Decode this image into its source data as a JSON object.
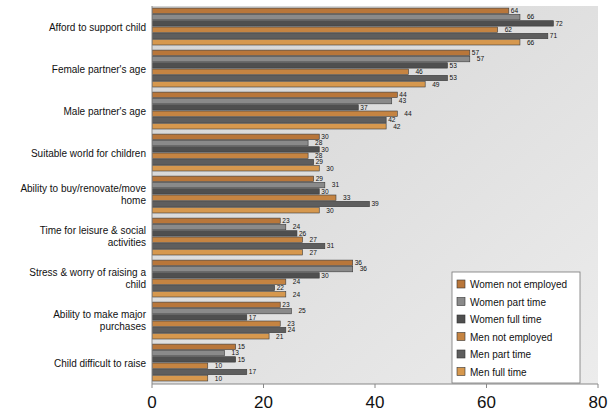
{
  "chart_data": {
    "type": "bar",
    "orientation": "horizontal",
    "data_labels": true,
    "grid": false,
    "legend": "lower right",
    "categories": [
      "Afford to support child",
      "Female partner's age",
      "Male partner's age",
      "Suitable world for children",
      "Ability to buy/renovate/move home",
      "Time for leisure & social activities",
      "Stress & worry of raising a child",
      "Ability to make major purchases",
      "Child difficult to raise"
    ],
    "series": [
      {
        "name": "Women not employed",
        "color": "#b8763a",
        "values": [
          64,
          57,
          44,
          30,
          29,
          23,
          36,
          23,
          15
        ]
      },
      {
        "name": "Women part time",
        "color": "#8a8a8a",
        "values": [
          66,
          57,
          43,
          28,
          31,
          24,
          36,
          25,
          13
        ]
      },
      {
        "name": "Women full time",
        "color": "#4f4f4f",
        "values": [
          72,
          53,
          37,
          30,
          30,
          26,
          30,
          17,
          15
        ]
      },
      {
        "name": "Men not employed",
        "color": "#c58442",
        "values": [
          62,
          46,
          44,
          28,
          33,
          27,
          24,
          23,
          10
        ]
      },
      {
        "name": "Men part time",
        "color": "#5e5e5e",
        "values": [
          71,
          53,
          42,
          29,
          39,
          31,
          22,
          24,
          17
        ]
      },
      {
        "name": "Men full time",
        "color": "#d6984e",
        "values": [
          66,
          49,
          42,
          30,
          30,
          27,
          24,
          21,
          10
        ]
      }
    ],
    "xlim": [
      0,
      80
    ],
    "xticks": [
      0,
      20,
      40,
      60,
      80
    ]
  }
}
